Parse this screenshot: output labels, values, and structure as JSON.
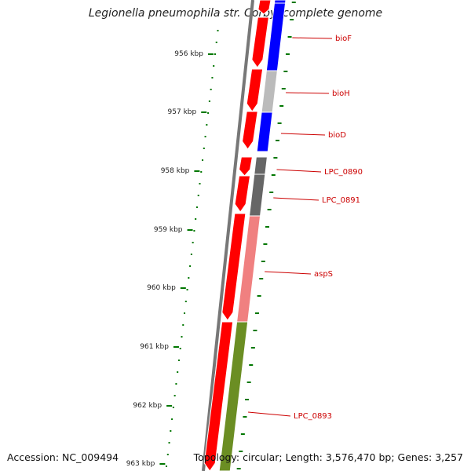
{
  "title": "Legionella pneumophila str. Corby, complete genome",
  "footer": {
    "accession": "Accession: NC_009494",
    "topology": "Topology: circular; Length: 3,576,470 bp; Genes: 3,257"
  },
  "colors": {
    "cds": "#ff0000",
    "backbone": "#777777",
    "tick": "#007700",
    "label": "#cc0000"
  },
  "ticks": [
    "956 kbp",
    "957 kbp",
    "958 kbp",
    "959 kbp",
    "960 kbp",
    "961 kbp",
    "962 kbp",
    "963 kbp"
  ],
  "genes": [
    {
      "name": "bioF",
      "color": "#0000ff"
    },
    {
      "name": "bioH",
      "color": "#bbbbbb"
    },
    {
      "name": "bioD",
      "color": "#0000ff"
    },
    {
      "name": "LPC_0890",
      "color": "#666666"
    },
    {
      "name": "LPC_0891",
      "color": "#666666"
    },
    {
      "name": "aspS",
      "color": "#f08080"
    },
    {
      "name": "LPC_0893",
      "color": "#6b8e23"
    }
  ]
}
